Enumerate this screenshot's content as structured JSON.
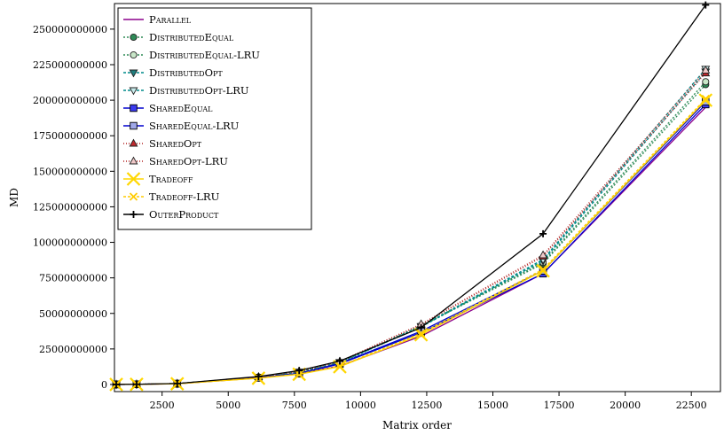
{
  "chart_data": {
    "type": "line",
    "title": "",
    "xlabel": "Matrix order",
    "ylabel": "MD",
    "xlim": [
      700,
      23600
    ],
    "ylim": [
      -5000000000,
      268000000000
    ],
    "xticks": [
      2500,
      5000,
      7500,
      10000,
      12500,
      15000,
      17500,
      20000,
      22500
    ],
    "yticks": [
      0,
      25000000000,
      50000000000,
      75000000000,
      100000000000,
      125000000000,
      150000000000,
      175000000000,
      200000000000,
      225000000000,
      250000000000
    ],
    "ytick_labels": [
      "0",
      "25000000000",
      "50000000000",
      "75000000000",
      "100000000000",
      "125000000000",
      "150000000000",
      "175000000000",
      "200000000000",
      "225000000000",
      "250000000000"
    ],
    "legend_position": "top-left",
    "x": [
      768,
      1536,
      3072,
      6144,
      7680,
      9216,
      12288,
      16896,
      23040
    ],
    "series": [
      {
        "name": "Parallel",
        "color": "#8b008b",
        "dash": "",
        "marker": "none",
        "values": [
          30000000.0,
          120000000.0,
          500000000.0,
          4500000000.0,
          7500000000.0,
          13000000000.0,
          34000000000.0,
          78000000000.0,
          195000000000.0
        ]
      },
      {
        "name": "DistributedEqual",
        "color": "#2e8b57",
        "dash": "2,2",
        "marker": "circle",
        "fill": "#2e8b57",
        "values": [
          40000000.0,
          150000000.0,
          600000000.0,
          5000000000.0,
          8500000000.0,
          15000000000.0,
          41000000000.0,
          85000000000.0,
          211000000000.0
        ]
      },
      {
        "name": "DistributedEqual-LRU",
        "color": "#2e8b57",
        "dash": "2,2",
        "marker": "circle",
        "fill": "#c8e6c8",
        "values": [
          40000000.0,
          150000000.0,
          600000000.0,
          5000000000.0,
          8600000000.0,
          15200000000.0,
          41500000000.0,
          86000000000.0,
          213000000000.0
        ]
      },
      {
        "name": "DistributedOpt",
        "color": "#008b8b",
        "dash": "3,2",
        "marker": "tri-down",
        "fill": "#1f7f7f",
        "values": [
          40000000.0,
          160000000.0,
          650000000.0,
          5200000000.0,
          8800000000.0,
          15500000000.0,
          40500000000.0,
          87000000000.0,
          220000000000.0
        ]
      },
      {
        "name": "DistributedOpt-LRU",
        "color": "#008b8b",
        "dash": "3,2",
        "marker": "tri-down",
        "fill": "#c8ecec",
        "values": [
          40000000.0,
          160000000.0,
          650000000.0,
          5200000000.0,
          8900000000.0,
          15700000000.0,
          41000000000.0,
          88000000000.0,
          222000000000.0
        ]
      },
      {
        "name": "SharedEqual",
        "color": "#0000cd",
        "dash": "",
        "marker": "square",
        "fill": "#3a3af0",
        "values": [
          30000000.0,
          130000000.0,
          550000000.0,
          4700000000.0,
          7600000000.0,
          14500000000.0,
          36500000000.0,
          78000000000.0,
          197000000000.0
        ]
      },
      {
        "name": "SharedEqual-LRU",
        "color": "#0000cd",
        "dash": "",
        "marker": "square",
        "fill": "#a0a8e8",
        "values": [
          30000000.0,
          130000000.0,
          550000000.0,
          4800000000.0,
          7800000000.0,
          14800000000.0,
          37500000000.0,
          80000000000.0,
          199000000000.0
        ]
      },
      {
        "name": "SharedOpt",
        "color": "#b22222",
        "dash": "1,2",
        "marker": "tri-up",
        "fill": "#c0282d",
        "values": [
          40000000.0,
          160000000.0,
          650000000.0,
          5300000000.0,
          9000000000.0,
          16000000000.0,
          42000000000.0,
          90000000000.0,
          219000000000.0
        ]
      },
      {
        "name": "SharedOpt-LRU",
        "color": "#b22222",
        "dash": "1,2",
        "marker": "tri-up",
        "fill": "#f0c8c8",
        "values": [
          40000000.0,
          160000000.0,
          650000000.0,
          5300000000.0,
          9100000000.0,
          16200000000.0,
          42500000000.0,
          91000000000.0,
          221000000000.0
        ]
      },
      {
        "name": "Tradeoff",
        "color": "#ffd700",
        "dash": "",
        "marker": "x-big",
        "fill": "#ffd700",
        "values": [
          30000000.0,
          120000000.0,
          500000000.0,
          4400000000.0,
          7200000000.0,
          12500000000.0,
          35000000000.0,
          80000000000.0,
          200000000000.0
        ]
      },
      {
        "name": "Tradeoff-LRU",
        "color": "#ffcc00",
        "dash": "3,2",
        "marker": "x-small",
        "fill": "#ffcc00",
        "values": [
          30000000.0,
          120000000.0,
          500000000.0,
          4500000000.0,
          7400000000.0,
          13000000000.0,
          36000000000.0,
          81000000000.0,
          201000000000.0
        ]
      },
      {
        "name": "OuterProduct",
        "color": "#000000",
        "dash": "",
        "marker": "plus",
        "fill": "#000000",
        "values": [
          40000000.0,
          160000000.0,
          700000000.0,
          5600000000.0,
          9800000000.0,
          16500000000.0,
          40000000000.0,
          106000000000.0,
          267000000000.0
        ]
      }
    ]
  }
}
